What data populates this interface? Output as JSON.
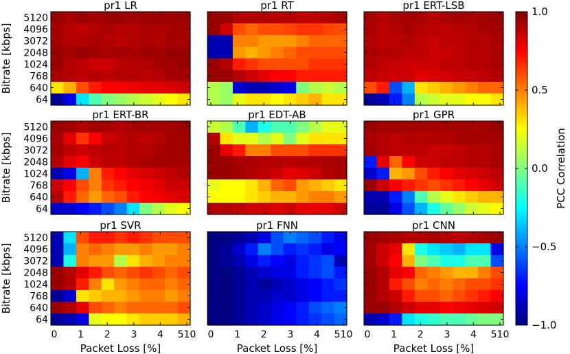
{
  "figure": {
    "ylabel": "Bitrate [kbps]",
    "xlabel": "Packet Loss [%]",
    "y_ticks": [
      "5120",
      "4096",
      "3072",
      "2048",
      "1024",
      "768",
      "640",
      "64"
    ],
    "x_ticks": [
      "0",
      "1",
      "2",
      "3",
      "4",
      "510"
    ]
  },
  "colorbar": {
    "label": "PCC Correlation",
    "ticks": [
      "1.0",
      "0.5",
      "0.0",
      "−0.5",
      "−1.0"
    ],
    "tick_values": [
      1.0,
      0.5,
      0.0,
      -0.5,
      -1.0
    ],
    "vmin": -1.0,
    "vmax": 1.0,
    "colormap": "jet"
  },
  "chart_data": {
    "type": "heatmap",
    "rows": [
      "5120",
      "4096",
      "3072",
      "2048",
      "1024",
      "768",
      "640",
      "64"
    ],
    "cols": [
      "0",
      "0.5",
      "1",
      "1.5",
      "2",
      "2.5",
      "3",
      "3.5",
      "4",
      "5",
      "10"
    ],
    "panels": [
      {
        "title": "pr1 LR",
        "values": [
          [
            0.95,
            0.92,
            0.95,
            0.93,
            0.94,
            0.95,
            0.93,
            0.94,
            0.95,
            0.94,
            0.95
          ],
          [
            0.92,
            0.9,
            0.88,
            0.9,
            0.92,
            0.9,
            0.9,
            0.92,
            0.91,
            0.92,
            0.93
          ],
          [
            0.93,
            0.9,
            0.9,
            0.92,
            0.9,
            0.88,
            0.9,
            0.91,
            0.9,
            0.92,
            0.92
          ],
          [
            0.95,
            0.93,
            0.95,
            0.93,
            0.92,
            0.93,
            0.92,
            0.94,
            0.93,
            0.95,
            0.95
          ],
          [
            0.95,
            0.9,
            0.88,
            0.85,
            0.85,
            0.88,
            0.9,
            0.9,
            0.92,
            0.93,
            0.95
          ],
          [
            0.92,
            0.9,
            0.88,
            0.9,
            0.88,
            0.9,
            0.9,
            0.88,
            0.9,
            0.92,
            0.93
          ],
          [
            0.3,
            0.4,
            0.6,
            0.7,
            0.75,
            0.75,
            0.78,
            0.8,
            0.8,
            0.82,
            0.85
          ],
          [
            -0.95,
            -0.8,
            -0.3,
            -0.1,
            0.0,
            0.05,
            0.1,
            0.15,
            0.2,
            0.25,
            0.3
          ]
        ]
      },
      {
        "title": "pr1 RT",
        "values": [
          [
            0.95,
            0.95,
            0.9,
            0.9,
            0.9,
            0.9,
            0.9,
            0.88,
            0.88,
            0.9,
            0.92
          ],
          [
            0.95,
            0.85,
            0.6,
            0.55,
            0.6,
            0.6,
            0.62,
            0.65,
            0.65,
            0.62,
            0.6
          ],
          [
            -0.9,
            -0.9,
            0.5,
            0.5,
            0.45,
            0.45,
            0.45,
            0.5,
            0.55,
            0.55,
            0.55
          ],
          [
            -0.9,
            -0.9,
            0.45,
            0.4,
            0.45,
            0.5,
            0.55,
            0.6,
            0.6,
            0.6,
            0.6
          ],
          [
            0.95,
            0.9,
            0.7,
            0.65,
            0.6,
            0.6,
            0.6,
            0.6,
            0.65,
            0.65,
            0.65
          ],
          [
            0.95,
            0.95,
            0.9,
            0.85,
            0.8,
            0.75,
            0.75,
            0.7,
            0.7,
            0.7,
            0.7
          ],
          [
            0.1,
            0.05,
            -0.85,
            -0.9,
            -0.9,
            -0.85,
            -0.8,
            0.0,
            0.1,
            0.15,
            0.1
          ],
          [
            0.1,
            0.05,
            0.2,
            0.3,
            0.3,
            0.25,
            0.3,
            0.35,
            0.4,
            0.3,
            0.3
          ]
        ]
      },
      {
        "title": "pr1 ERT-LSB",
        "values": [
          [
            0.93,
            0.9,
            0.92,
            0.93,
            0.92,
            0.9,
            0.92,
            0.93,
            0.92,
            0.93,
            0.95
          ],
          [
            0.92,
            0.88,
            0.9,
            0.92,
            0.9,
            0.88,
            0.88,
            0.9,
            0.9,
            0.92,
            0.93
          ],
          [
            0.9,
            0.88,
            0.88,
            0.9,
            0.88,
            0.86,
            0.88,
            0.88,
            0.9,
            0.9,
            0.92
          ],
          [
            0.92,
            0.9,
            0.9,
            0.88,
            0.88,
            0.86,
            0.86,
            0.88,
            0.9,
            0.9,
            0.92
          ],
          [
            0.9,
            0.88,
            0.86,
            0.85,
            0.85,
            0.85,
            0.88,
            0.88,
            0.9,
            0.9,
            0.92
          ],
          [
            0.88,
            0.86,
            0.85,
            0.85,
            0.8,
            0.82,
            0.84,
            0.86,
            0.86,
            0.88,
            0.9
          ],
          [
            0.6,
            0.7,
            -0.6,
            -0.4,
            0.3,
            0.35,
            0.4,
            0.45,
            0.5,
            0.55,
            0.55
          ],
          [
            -0.95,
            -0.9,
            -0.7,
            -0.5,
            0.1,
            0.15,
            0.2,
            0.2,
            0.25,
            0.25,
            0.3
          ]
        ]
      },
      {
        "title": "pr1 ERT-BR",
        "values": [
          [
            0.95,
            0.93,
            0.9,
            0.93,
            0.92,
            0.9,
            0.92,
            0.93,
            0.92,
            0.93,
            0.95
          ],
          [
            0.92,
            0.8,
            0.65,
            0.75,
            0.85,
            0.88,
            0.9,
            0.88,
            0.9,
            0.92,
            0.93
          ],
          [
            0.93,
            0.88,
            0.85,
            0.88,
            0.9,
            0.88,
            0.9,
            0.9,
            0.92,
            0.93,
            0.93
          ],
          [
            0.9,
            0.8,
            0.75,
            0.85,
            0.88,
            0.88,
            0.9,
            0.92,
            0.92,
            0.92,
            0.92
          ],
          [
            -0.9,
            -0.8,
            -0.4,
            0.5,
            0.7,
            0.75,
            0.8,
            0.82,
            0.85,
            0.88,
            0.9
          ],
          [
            0.85,
            0.75,
            0.6,
            0.5,
            0.65,
            0.7,
            0.75,
            0.78,
            0.8,
            0.85,
            0.85
          ],
          [
            0.9,
            0.7,
            0.55,
            0.45,
            0.55,
            0.6,
            0.7,
            0.75,
            0.78,
            0.8,
            0.82
          ],
          [
            -0.85,
            -0.85,
            -0.75,
            -0.7,
            -0.6,
            -0.5,
            -0.3,
            0.0,
            0.1,
            0.2,
            0.25
          ]
        ]
      },
      {
        "title": "pr1 EDT-AB",
        "values": [
          [
            0.15,
            0.1,
            -0.1,
            -0.4,
            -0.2,
            -0.1,
            -0.1,
            0.0,
            0.1,
            0.2,
            0.2
          ],
          [
            0.9,
            0.3,
            0.2,
            0.2,
            0.1,
            0.2,
            0.0,
            0.2,
            0.3,
            0.3,
            0.3
          ],
          [
            0.95,
            0.8,
            0.7,
            0.5,
            0.5,
            0.6,
            0.6,
            0.6,
            0.65,
            0.65,
            0.65
          ],
          [
            0.95,
            0.95,
            0.92,
            0.92,
            0.9,
            0.9,
            0.88,
            0.9,
            0.9,
            0.92,
            0.92
          ],
          [
            0.95,
            0.95,
            0.93,
            0.9,
            0.88,
            0.85,
            0.8,
            0.82,
            0.85,
            0.9,
            0.92
          ],
          [
            0.2,
            0.25,
            0.25,
            0.3,
            0.4,
            0.55,
            0.6,
            0.45,
            0.4,
            0.35,
            0.3
          ],
          [
            0.25,
            0.25,
            0.25,
            0.3,
            0.35,
            0.4,
            0.4,
            0.45,
            0.5,
            0.5,
            0.45
          ],
          [
            0.9,
            0.9,
            0.88,
            0.85,
            0.85,
            0.82,
            0.85,
            0.8,
            0.8,
            0.8,
            0.85
          ]
        ]
      },
      {
        "title": "pr1 GPR",
        "values": [
          [
            0.95,
            0.93,
            0.92,
            0.93,
            0.92,
            0.92,
            0.93,
            0.93,
            0.92,
            0.93,
            0.95
          ],
          [
            0.92,
            0.9,
            0.88,
            0.9,
            0.9,
            0.9,
            0.9,
            0.92,
            0.92,
            0.92,
            0.93
          ],
          [
            0.93,
            0.9,
            0.88,
            0.88,
            0.88,
            0.86,
            0.86,
            0.88,
            0.9,
            0.9,
            0.92
          ],
          [
            -0.7,
            0.8,
            0.55,
            0.75,
            0.85,
            0.85,
            0.88,
            0.88,
            0.9,
            0.9,
            0.92
          ],
          [
            -0.85,
            -0.7,
            0.4,
            0.45,
            0.6,
            0.7,
            0.75,
            0.8,
            0.82,
            0.85,
            0.88
          ],
          [
            0.95,
            0.85,
            0.75,
            0.7,
            0.65,
            0.6,
            0.65,
            0.7,
            0.75,
            0.8,
            0.85
          ],
          [
            -0.9,
            -0.9,
            -0.7,
            -0.5,
            -0.1,
            0.1,
            0.2,
            0.3,
            0.35,
            0.4,
            0.4
          ],
          [
            -0.95,
            -0.95,
            -0.8,
            -0.6,
            -0.4,
            -0.2,
            -0.05,
            0.05,
            0.15,
            0.2,
            0.25
          ]
        ]
      },
      {
        "title": "pr1 SVR",
        "values": [
          [
            -0.9,
            -0.3,
            0.6,
            0.7,
            0.7,
            0.65,
            0.7,
            0.65,
            0.6,
            0.6,
            0.6
          ],
          [
            -0.9,
            -0.4,
            0.5,
            0.55,
            0.5,
            0.45,
            0.45,
            0.5,
            0.45,
            0.45,
            0.5
          ],
          [
            -0.9,
            -0.2,
            0.5,
            0.45,
            0.45,
            0.1,
            0.3,
            0.4,
            0.45,
            0.5,
            0.5
          ],
          [
            0.95,
            0.9,
            0.8,
            0.7,
            0.6,
            0.55,
            0.6,
            0.65,
            0.6,
            0.55,
            0.6
          ],
          [
            0.95,
            0.9,
            0.7,
            0.5,
            0.3,
            0.45,
            0.5,
            0.55,
            0.55,
            0.5,
            0.55
          ],
          [
            -0.95,
            -0.85,
            0.3,
            0.35,
            0.4,
            0.4,
            0.45,
            0.5,
            0.5,
            0.45,
            0.5
          ],
          [
            0.95,
            0.9,
            0.8,
            0.6,
            0.55,
            0.5,
            0.55,
            0.55,
            0.55,
            0.55,
            0.6
          ],
          [
            -0.95,
            -0.9,
            -0.8,
            0.2,
            0.25,
            0.25,
            0.3,
            0.35,
            0.35,
            0.35,
            0.4
          ]
        ]
      },
      {
        "title": "pr1 FNN",
        "values": [
          [
            -1.0,
            -1.0,
            -0.95,
            -0.9,
            -0.8,
            -0.6,
            -0.5,
            -0.55,
            -0.6,
            -0.7,
            -0.8
          ],
          [
            -1.0,
            -0.95,
            -0.85,
            -0.7,
            -0.5,
            -0.6,
            -0.7,
            -0.65,
            -0.7,
            -0.8,
            -0.75
          ],
          [
            -1.0,
            -0.95,
            -0.9,
            -0.8,
            -0.7,
            -0.75,
            -0.8,
            -0.7,
            -0.65,
            -0.6,
            -0.9
          ],
          [
            -1.0,
            -1.0,
            -0.95,
            -0.9,
            -0.85,
            -0.8,
            -0.8,
            -0.7,
            -0.65,
            -0.6,
            -0.7
          ],
          [
            -1.0,
            -1.0,
            -0.95,
            -0.9,
            -0.95,
            -0.9,
            -0.85,
            -0.8,
            -0.75,
            -0.7,
            -0.65
          ],
          [
            -1.0,
            -1.0,
            -0.95,
            -0.9,
            -0.9,
            -0.85,
            -0.85,
            -0.8,
            -0.75,
            -0.7,
            -0.7
          ],
          [
            -1.0,
            -1.0,
            -0.95,
            -0.9,
            -0.85,
            -0.8,
            -0.75,
            -0.7,
            -0.6,
            -0.55,
            -0.5
          ],
          [
            -1.0,
            -1.0,
            -0.95,
            -0.9,
            -0.85,
            -0.8,
            -0.75,
            -0.7,
            -0.65,
            -0.6,
            -0.55
          ]
        ]
      },
      {
        "title": "pr1 CNN",
        "values": [
          [
            0.95,
            0.93,
            0.92,
            0.9,
            0.9,
            0.92,
            0.9,
            0.88,
            0.9,
            0.92,
            0.95
          ],
          [
            0.93,
            0.85,
            0.8,
            0.3,
            -0.2,
            -0.3,
            -0.35,
            -0.4,
            -0.3,
            -0.3,
            -0.8
          ],
          [
            0.93,
            0.85,
            0.75,
            0.4,
            0.0,
            -0.1,
            -0.2,
            -0.2,
            -0.1,
            -0.1,
            -0.6
          ],
          [
            0.95,
            0.9,
            0.8,
            0.75,
            0.55,
            0.5,
            0.45,
            0.4,
            0.4,
            0.5,
            0.6
          ],
          [
            0.95,
            0.9,
            0.7,
            0.6,
            0.5,
            0.55,
            0.5,
            0.55,
            0.6,
            0.6,
            0.65
          ],
          [
            0.95,
            0.9,
            0.85,
            0.7,
            0.6,
            0.6,
            0.55,
            0.6,
            0.65,
            0.7,
            0.75
          ],
          [
            0.95,
            0.95,
            0.9,
            0.85,
            0.8,
            0.8,
            0.75,
            0.78,
            0.8,
            0.82,
            0.85
          ],
          [
            -0.9,
            -0.85,
            -0.7,
            -0.3,
            -0.2,
            -0.15,
            -0.1,
            -0.1,
            -0.05,
            0.0,
            0.0
          ]
        ]
      }
    ]
  }
}
